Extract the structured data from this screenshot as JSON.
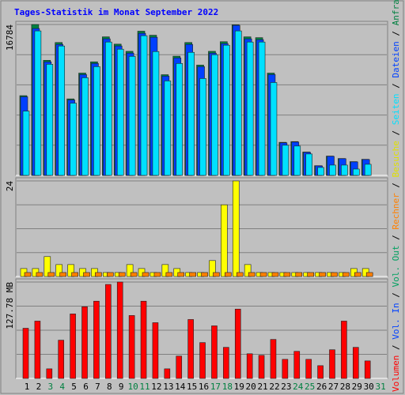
{
  "title": "Tages-Statistik im Monat September 2022",
  "legend_separator": " / ",
  "chart_data": [
    {
      "type": "bar",
      "categories": [
        "1",
        "2",
        "3",
        "4",
        "5",
        "6",
        "7",
        "8",
        "9",
        "10",
        "11",
        "12",
        "13",
        "14",
        "15",
        "16",
        "17",
        "18",
        "19",
        "20",
        "21",
        "22",
        "23",
        "24",
        "25",
        "26",
        "27",
        "28",
        "29",
        "30",
        "31"
      ],
      "category_colors": [
        "#000000",
        "#000000",
        "#008040",
        "#008040",
        "#000000",
        "#000000",
        "#000000",
        "#000000",
        "#000000",
        "#008040",
        "#008040",
        "#000000",
        "#000000",
        "#000000",
        "#000000",
        "#000000",
        "#008040",
        "#008040",
        "#000000",
        "#000000",
        "#000000",
        "#000000",
        "#000000",
        "#008040",
        "#008040",
        "#000000",
        "#000000",
        "#000000",
        "#000000",
        "#000000",
        "#008040"
      ],
      "ylim": [
        0,
        16784
      ],
      "yticks": [
        16784
      ],
      "series": [
        {
          "name": "Anfragen",
          "color": "#008040",
          "values": [
            8870,
            16784,
            12800,
            14780,
            8510,
            11380,
            12630,
            15410,
            14600,
            13800,
            16040,
            15590,
            11200,
            13260,
            14780,
            12270,
            13800,
            14870,
            16750,
            15410,
            15320,
            11380,
            3680,
            3760,
            2600,
            1080,
            2150,
            1880,
            1530,
            1790,
            null
          ]
        },
        {
          "name": "Dateien",
          "color": "#0040ff",
          "values": [
            8742,
            16336,
            12627,
            14570,
            8389,
            11214,
            12450,
            15188,
            14393,
            13598,
            15806,
            15364,
            11038,
            13068,
            14570,
            12097,
            13598,
            14658,
            16689,
            15188,
            15099,
            11214,
            3620,
            3709,
            2561,
            1060,
            2119,
            1854,
            1501,
            1766,
            null
          ]
        },
        {
          "name": "Seiten",
          "color": "#00e0ff",
          "values": [
            7152,
            16071,
            12362,
            14393,
            8035,
            10861,
            12097,
            14834,
            14040,
            13245,
            15541,
            13775,
            10508,
            12450,
            13687,
            10773,
            13422,
            14481,
            16071,
            14834,
            14834,
            10331,
            3355,
            3267,
            2384,
            883,
            1148,
            1148,
            706,
            1236,
            null
          ]
        }
      ]
    },
    {
      "type": "bar",
      "ylim": [
        0,
        24
      ],
      "yticks": [
        24
      ],
      "series": [
        {
          "name": "Besuche",
          "color": "#ffff00",
          "values": [
            2,
            2,
            5,
            3,
            3,
            2,
            2,
            1,
            1,
            3,
            2,
            1,
            3,
            2,
            1,
            1,
            4,
            18,
            24,
            3,
            1,
            1,
            1,
            1,
            1,
            1,
            1,
            1,
            2,
            2,
            null
          ]
        },
        {
          "name": "Rechner",
          "color": "#ff8000",
          "values": [
            1,
            1,
            1,
            1,
            1,
            1,
            1,
            1,
            1,
            1,
            1,
            1,
            1,
            1,
            1,
            1,
            1,
            1,
            1,
            1,
            1,
            1,
            1,
            1,
            1,
            1,
            1,
            1,
            1,
            1,
            null
          ]
        }
      ]
    },
    {
      "type": "bar",
      "ylim": [
        0,
        127.78
      ],
      "yticks": [
        {
          "value": 127.78,
          "label": "127.78 MB"
        }
      ],
      "series": [
        {
          "name": "Volumen",
          "color": "#ff0000",
          "values": [
            66.5,
            76.0,
            12.7,
            50.7,
            85.5,
            95.0,
            102.4,
            124.6,
            127.78,
            83.4,
            102.4,
            73.9,
            12.7,
            29.6,
            78.1,
            47.5,
            69.7,
            41.2,
            91.9,
            32.7,
            30.6,
            51.7,
            25.3,
            35.9,
            25.3,
            16.9,
            38.0,
            76.0,
            41.2,
            23.2,
            null
          ]
        }
      ],
      "legend_only": [
        {
          "name": "Vol. In",
          "color": "#0040ff"
        },
        {
          "name": "Vol. Out",
          "color": "#00a060"
        }
      ]
    }
  ]
}
